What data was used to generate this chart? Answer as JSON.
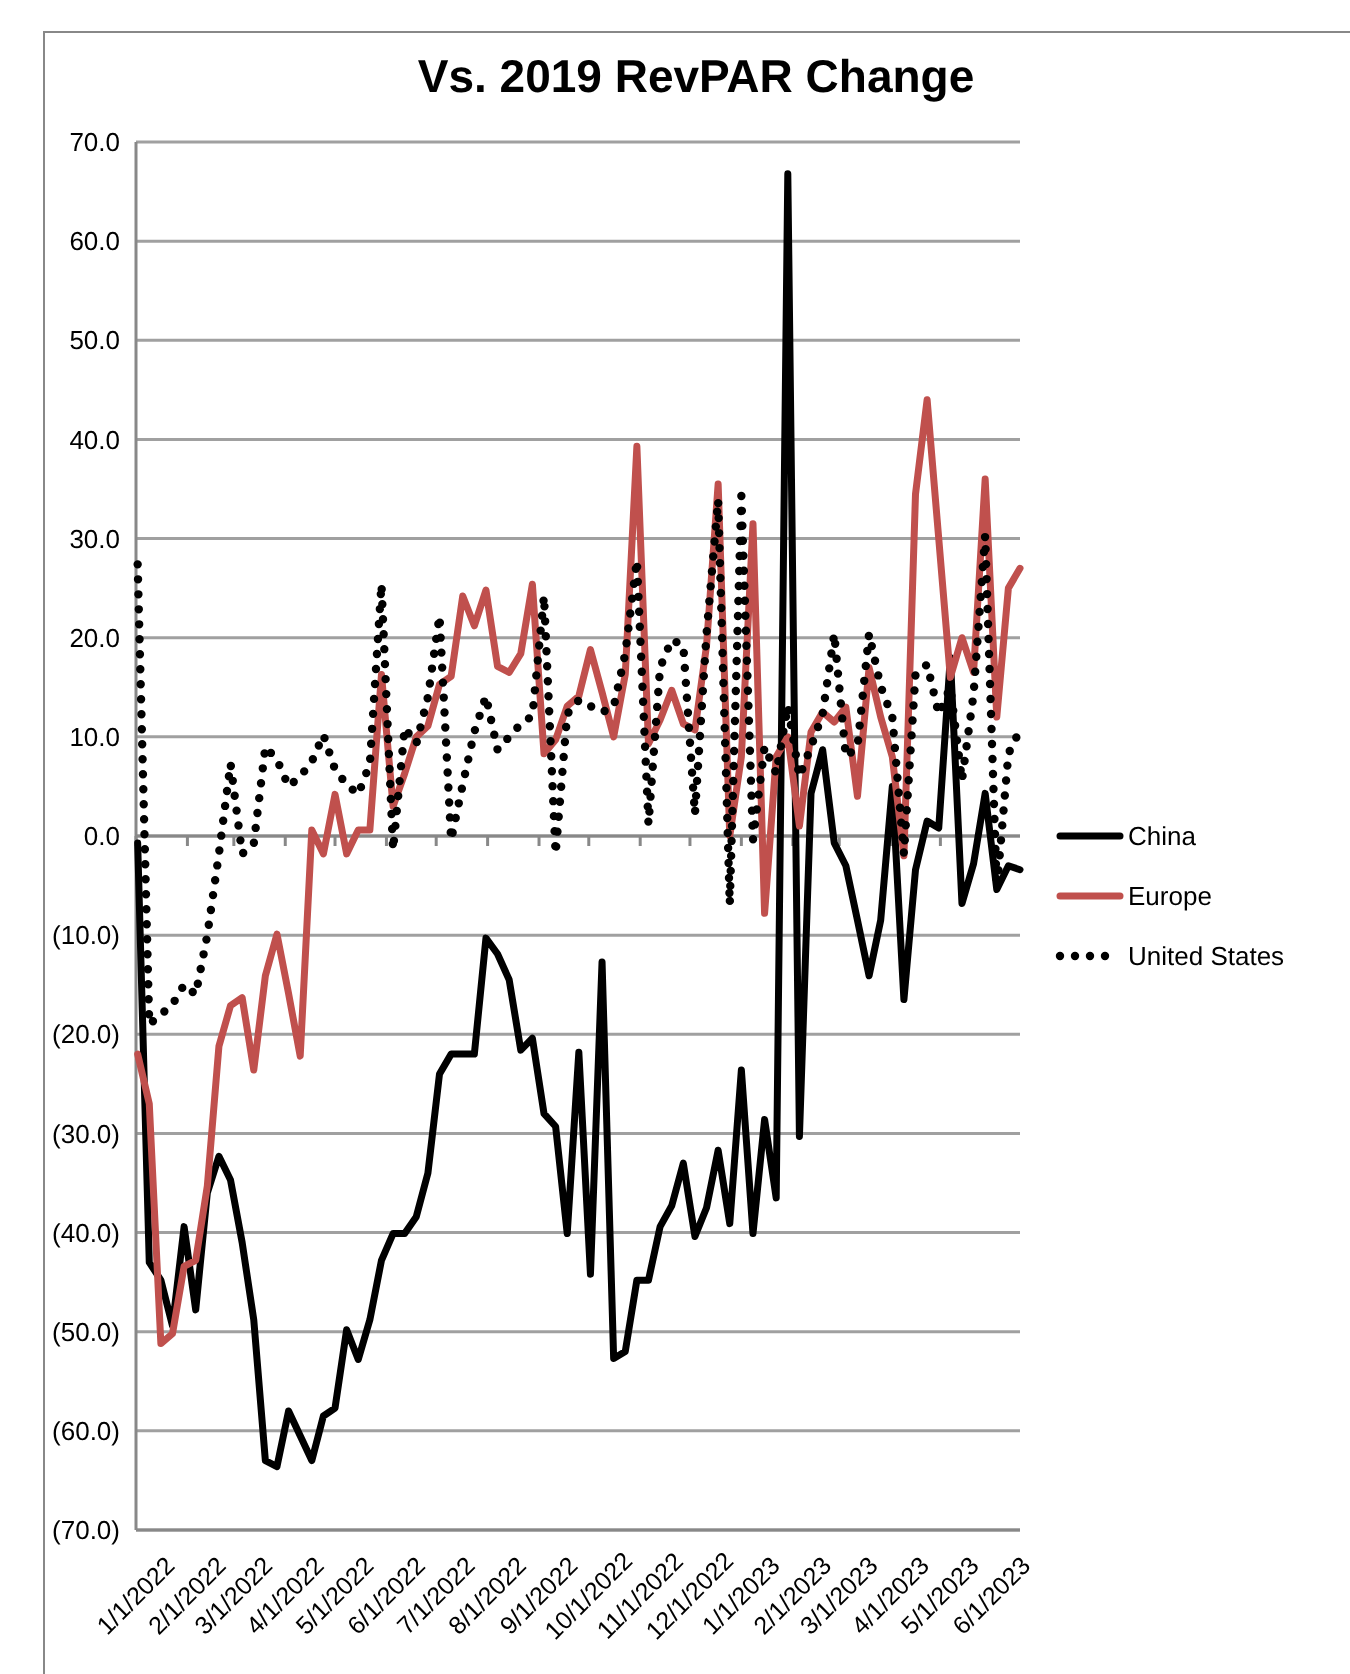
{
  "chart_data": {
    "type": "line",
    "title": "Vs. 2019 RevPAR Change",
    "x": [
      "2022-01-02",
      "2022-01-09",
      "2022-01-16",
      "2022-01-23",
      "2022-01-30",
      "2022-02-06",
      "2022-02-13",
      "2022-02-20",
      "2022-02-27",
      "2022-03-06",
      "2022-03-13",
      "2022-03-20",
      "2022-03-27",
      "2022-04-03",
      "2022-04-10",
      "2022-04-17",
      "2022-04-24",
      "2022-05-01",
      "2022-05-08",
      "2022-05-15",
      "2022-05-22",
      "2022-05-29",
      "2022-06-05",
      "2022-06-12",
      "2022-06-19",
      "2022-06-26",
      "2022-07-03",
      "2022-07-10",
      "2022-07-17",
      "2022-07-24",
      "2022-07-31",
      "2022-08-07",
      "2022-08-14",
      "2022-08-21",
      "2022-08-28",
      "2022-09-04",
      "2022-09-11",
      "2022-09-18",
      "2022-09-25",
      "2022-10-02",
      "2022-10-09",
      "2022-10-16",
      "2022-10-23",
      "2022-10-30",
      "2022-11-06",
      "2022-11-13",
      "2022-11-20",
      "2022-11-27",
      "2022-12-04",
      "2022-12-11",
      "2022-12-18",
      "2022-12-25",
      "2023-01-01",
      "2023-01-08",
      "2023-01-15",
      "2023-01-22",
      "2023-01-29",
      "2023-02-05",
      "2023-02-12",
      "2023-02-19",
      "2023-02-26",
      "2023-03-05",
      "2023-03-12",
      "2023-03-19",
      "2023-03-26",
      "2023-04-02",
      "2023-04-09",
      "2023-04-16",
      "2023-04-23",
      "2023-04-30",
      "2023-05-07",
      "2023-05-14",
      "2023-05-21",
      "2023-05-28",
      "2023-06-04",
      "2023-06-11",
      "2023-06-18"
    ],
    "series": [
      {
        "name": "China",
        "color": "#000000",
        "line_style": "solid",
        "values": [
          -0.7,
          -43,
          -44.8,
          -49.4,
          -39.4,
          -47.8,
          -36,
          -32.3,
          -34.7,
          -41,
          -48.8,
          -63,
          -63.6,
          -58,
          -60.5,
          -63,
          -58.5,
          -57.7,
          -49.8,
          -52.8,
          -48.8,
          -42.8,
          -40.1,
          -40.1,
          -38.4,
          -34,
          -24,
          -22,
          -22,
          -22,
          -10.3,
          -11.9,
          -14.5,
          -21.6,
          -20.4,
          -28,
          -29.3,
          -40.1,
          -21.8,
          -44.2,
          -12.7,
          -52.7,
          -52,
          -44.8,
          -44.8,
          -39.4,
          -37.3,
          -33,
          -40.4,
          -37.5,
          -31.7,
          -39.1,
          -23.6,
          -40.1,
          -28.6,
          -36.5,
          66.8,
          -30.3,
          4.3,
          8.7,
          -0.7,
          -3,
          -8.5,
          -14.1,
          -8.5,
          5,
          -16.5,
          -3.4,
          1.5,
          0.8,
          18,
          -6.8,
          -2.8,
          4.3,
          -5.4,
          -3,
          -3.4
        ]
      },
      {
        "name": "Europe",
        "color": "#c0504d",
        "line_style": "solid",
        "values": [
          -22,
          -27,
          -51.2,
          -50.2,
          -43.4,
          -42.8,
          -35.3,
          -21.2,
          -17.1,
          -16.3,
          -23.6,
          -14.1,
          -9.9,
          -15.9,
          -22.2,
          0.6,
          -1.8,
          4.2,
          -1.8,
          0.6,
          0.6,
          16.3,
          3,
          6.3,
          10,
          11.1,
          15.3,
          16.1,
          24.2,
          21.2,
          24.8,
          17.1,
          16.5,
          18.4,
          25.4,
          8.3,
          9.7,
          13.1,
          14.1,
          18.8,
          14.5,
          10,
          16.3,
          39.3,
          9.3,
          11.7,
          14.7,
          11.3,
          10.7,
          19.2,
          35.5,
          0,
          8,
          31.5,
          -7.8,
          8,
          10,
          1,
          10.5,
          12.5,
          11.5,
          13,
          4,
          17,
          12,
          8,
          -2,
          34.5,
          44,
          30,
          16,
          20,
          16.5,
          36,
          12,
          25,
          27
        ]
      },
      {
        "name": "United States",
        "color": "#000000",
        "line_style": "dotted",
        "values": [
          27.4,
          -19,
          -18,
          -17,
          -15,
          -16,
          -10,
          -1.8,
          7.3,
          -1.8,
          -0.8,
          9,
          7.7,
          5,
          6,
          7.5,
          10.2,
          6.7,
          5.2,
          4.2,
          7.3,
          25.4,
          -1.4,
          10.9,
          9.3,
          14,
          22.2,
          -0.4,
          5.2,
          10.5,
          14.1,
          8.7,
          10,
          11.3,
          12.1,
          24.2,
          -1.8,
          12.3,
          13.7,
          13.1,
          12.5,
          13,
          18.4,
          27.8,
          1.2,
          17,
          19.8,
          19.2,
          2.2,
          20.4,
          33.9,
          -6.9,
          34.3,
          -0.4,
          9,
          6.3,
          13.1,
          6,
          9,
          12.3,
          20.4,
          8,
          9,
          20.4,
          15.1,
          12,
          -1.8,
          16.3,
          17.3,
          12.3,
          15,
          5.6,
          14.3,
          30.3,
          -5.4,
          8.3,
          10.7
        ]
      }
    ],
    "xlim": [
      "2022-01-01",
      "2023-06-18"
    ],
    "xticks": [
      {
        "value": "2022-01-01",
        "label": "1/1/2022"
      },
      {
        "value": "2022-02-01",
        "label": "2/1/2022"
      },
      {
        "value": "2022-03-01",
        "label": "3/1/2022"
      },
      {
        "value": "2022-04-01",
        "label": "4/1/2022"
      },
      {
        "value": "2022-05-01",
        "label": "5/1/2022"
      },
      {
        "value": "2022-06-01",
        "label": "6/1/2022"
      },
      {
        "value": "2022-07-01",
        "label": "7/1/2022"
      },
      {
        "value": "2022-08-01",
        "label": "8/1/2022"
      },
      {
        "value": "2022-09-01",
        "label": "9/1/2022"
      },
      {
        "value": "2022-10-01",
        "label": "10/1/2022"
      },
      {
        "value": "2022-11-01",
        "label": "11/1/2022"
      },
      {
        "value": "2022-12-01",
        "label": "12/1/2022"
      },
      {
        "value": "2023-01-01",
        "label": "1/1/2023"
      },
      {
        "value": "2023-02-01",
        "label": "2/1/2023"
      },
      {
        "value": "2023-03-01",
        "label": "3/1/2023"
      },
      {
        "value": "2023-04-01",
        "label": "4/1/2023"
      },
      {
        "value": "2023-05-01",
        "label": "5/1/2023"
      },
      {
        "value": "2023-06-01",
        "label": "6/1/2023"
      }
    ],
    "ylim": [
      -70,
      70
    ],
    "yticks": [
      {
        "value": -70,
        "label": "(70.0)"
      },
      {
        "value": -60,
        "label": "(60.0)"
      },
      {
        "value": -50,
        "label": "(50.0)"
      },
      {
        "value": -40,
        "label": "(40.0)"
      },
      {
        "value": -30,
        "label": "(30.0)"
      },
      {
        "value": -20,
        "label": "(20.0)"
      },
      {
        "value": -10,
        "label": "(10.0)"
      },
      {
        "value": 0,
        "label": "0.0"
      },
      {
        "value": 10,
        "label": "10.0"
      },
      {
        "value": 20,
        "label": "20.0"
      },
      {
        "value": 30,
        "label": "30.0"
      },
      {
        "value": 40,
        "label": "40.0"
      },
      {
        "value": 50,
        "label": "50.0"
      },
      {
        "value": 60,
        "label": "60.0"
      },
      {
        "value": 70,
        "label": "70.0"
      }
    ],
    "grid": "y",
    "legend": "right",
    "marker": "none"
  }
}
